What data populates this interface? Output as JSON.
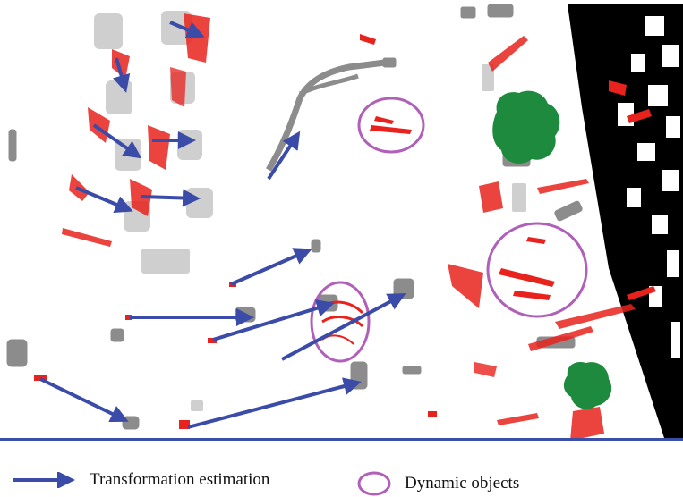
{
  "colors": {
    "arrow": "#3b4ba8",
    "circle": "#b060b8",
    "points_dynamic": "#e8221c",
    "static_object": "#cccccc",
    "road_object": "#8c8c8c",
    "tree": "#1e8a3e",
    "building": "#000000",
    "rule": "#3b4fa8"
  },
  "legend": {
    "transformation_label": "Transformation estimation",
    "dynamic_label": "Dynamic objects"
  },
  "icons": {
    "arrow": "arrow-icon",
    "circle": "circle-icon"
  }
}
